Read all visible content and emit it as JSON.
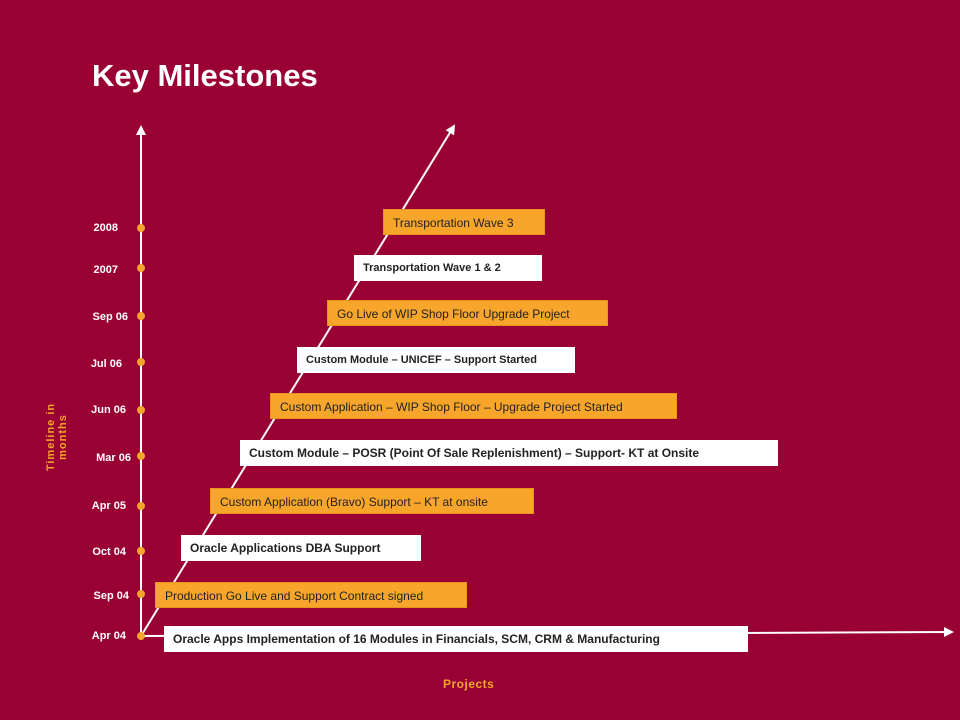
{
  "title": "Key Milestones",
  "y_axis_label": "Timeline in months",
  "x_axis_label": "Projects",
  "timeline": [
    "2008",
    "2007",
    "Sep 06",
    "Jul 06",
    "Jun 06",
    "Mar 06",
    "Apr 05",
    "Oct 04",
    "Sep 04",
    "Apr 04"
  ],
  "milestones": [
    "Transportation Wave 3",
    "Transportation Wave 1 & 2",
    "Go Live of WIP Shop Floor Upgrade Project",
    "Custom Module – UNICEF – Support  Started",
    "Custom Application – WIP Shop Floor – Upgrade Project Started",
    "Custom Module – POSR (Point Of Sale Replenishment) – Support- KT at Onsite",
    "Custom Application (Bravo) Support – KT at onsite",
    "Oracle Applications DBA  Support",
    "Production Go Live and Support Contract signed",
    "Oracle Apps Implementation of 16 Modules in Financials, SCM, CRM & Manufacturing"
  ],
  "colors": {
    "background": "#990033",
    "accent": "#f4a52a",
    "box_orange": "#f8a52c",
    "box_white": "#ffffff"
  }
}
